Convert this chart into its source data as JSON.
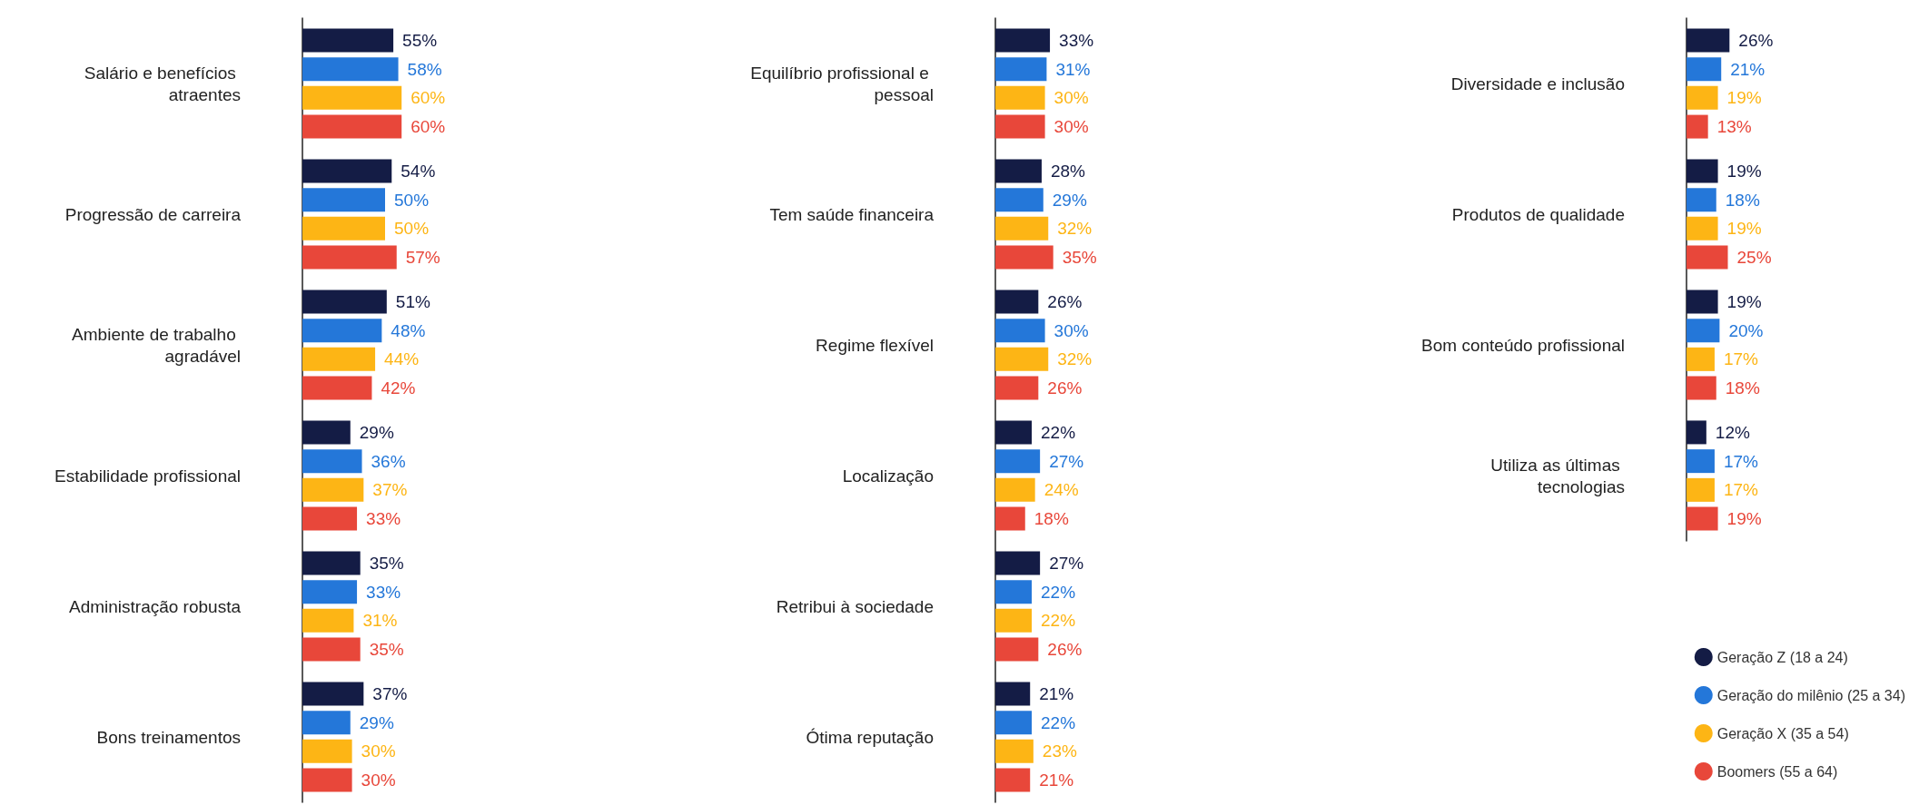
{
  "chart_data": [
    {
      "type": "bar",
      "orientation": "horizontal",
      "categories": [
        "Salário e benefícios atraentes",
        "Progressão de carreira",
        "Ambiente de trabalho agradável",
        "Estabilidade profissional",
        "Administração robusta",
        "Bons treinamentos"
      ],
      "tick_labels": "y",
      "grid": false,
      "legend": false,
      "series": [
        {
          "color": "#141c45",
          "values": [
            55,
            54,
            51,
            29,
            35,
            37
          ],
          "value_labels": [
            "55%",
            "54%",
            "51%",
            "29%",
            "35%",
            "37%"
          ]
        },
        {
          "color": "#2477d9",
          "values": [
            58,
            50,
            48,
            36,
            33,
            29
          ],
          "value_labels": [
            "58%",
            "50%",
            "48%",
            "36%",
            "33%",
            "29%"
          ]
        },
        {
          "color": "#fdb515",
          "values": [
            60,
            50,
            44,
            37,
            31,
            30
          ],
          "value_labels": [
            "60%",
            "50%",
            "44%",
            "37%",
            "31%",
            "30%"
          ]
        },
        {
          "color": "#e8473a",
          "values": [
            60,
            57,
            42,
            33,
            35,
            30
          ],
          "value_labels": [
            "60%",
            "57%",
            "42%",
            "33%",
            "35%",
            "30%"
          ]
        }
      ]
    },
    {
      "type": "bar",
      "orientation": "horizontal",
      "categories": [
        "Equilíbrio profissional e pessoal",
        "Tem saúde financeira",
        "Regime flexível",
        "Localização",
        "Retribui à sociedade",
        "Ótima reputação"
      ],
      "tick_labels": "y",
      "grid": false,
      "legend": false,
      "series": [
        {
          "color": "#141c45",
          "values": [
            33,
            28,
            26,
            22,
            27,
            21
          ],
          "value_labels": [
            "33%",
            "28%",
            "26%",
            "22%",
            "27%",
            "21%"
          ]
        },
        {
          "color": "#2477d9",
          "values": [
            31,
            29,
            30,
            27,
            22,
            22
          ],
          "value_labels": [
            "31%",
            "29%",
            "30%",
            "27%",
            "22%",
            "22%"
          ]
        },
        {
          "color": "#fdb515",
          "values": [
            30,
            32,
            32,
            24,
            22,
            23
          ],
          "value_labels": [
            "30%",
            "32%",
            "32%",
            "24%",
            "22%",
            "23%"
          ]
        },
        {
          "color": "#e8473a",
          "values": [
            30,
            35,
            26,
            18,
            26,
            21
          ],
          "value_labels": [
            "30%",
            "35%",
            "26%",
            "18%",
            "26%",
            "21%"
          ]
        }
      ]
    },
    {
      "type": "bar",
      "orientation": "horizontal",
      "categories": [
        "Diversidade e inclusão",
        "Produtos de qualidade",
        "Bom conteúdo profissional",
        "Utiliza as últimas tecnologias"
      ],
      "tick_labels": "y",
      "grid": false,
      "legend": "bottom right",
      "series": [
        {
          "name": "Geração Z (18 a 24)",
          "color": "#141c45",
          "values": [
            26,
            19,
            19,
            12
          ],
          "value_labels": [
            "26%",
            "19%",
            "19%",
            "12%"
          ]
        },
        {
          "name": "Geração do milênio (25 a 34)",
          "color": "#2477d9",
          "values": [
            21,
            18,
            20,
            17
          ],
          "value_labels": [
            "21%",
            "18%",
            "20%",
            "17%"
          ]
        },
        {
          "name": "Geração X (35 a 54)",
          "color": "#fdb515",
          "values": [
            19,
            19,
            17,
            17
          ],
          "value_labels": [
            "19%",
            "19%",
            "17%",
            "17%"
          ]
        },
        {
          "name": "Boomers (55 a 64)",
          "color": "#e8473a",
          "values": [
            13,
            25,
            18,
            19
          ],
          "value_labels": [
            "13%",
            "25%",
            "18%",
            "19%"
          ]
        }
      ]
    }
  ]
}
